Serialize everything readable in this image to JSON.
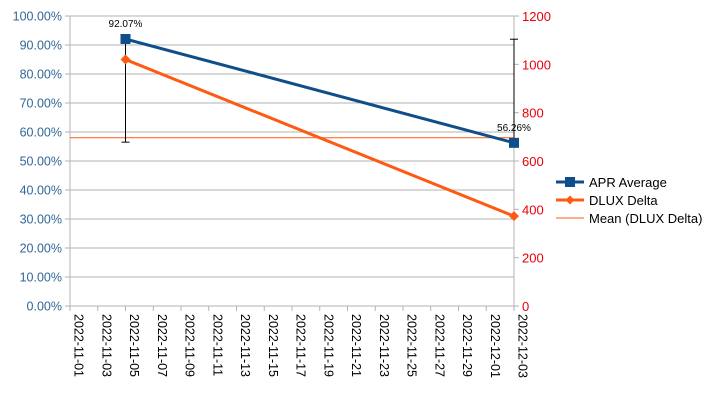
{
  "chart_data": {
    "type": "line",
    "x": [
      "2022-11-05",
      "2022-12-03"
    ],
    "x_tick_labels": [
      "2022-11-01",
      "2022-11-03",
      "2022-11-05",
      "2022-11-07",
      "2022-11-09",
      "2022-11-11",
      "2022-11-13",
      "2022-11-15",
      "2022-11-17",
      "2022-11-19",
      "2022-11-21",
      "2022-11-23",
      "2022-11-25",
      "2022-11-27",
      "2022-11-29",
      "2022-12-01",
      "2022-12-03"
    ],
    "x_range": [
      "2022-11-01",
      "2022-12-03"
    ],
    "y_left": {
      "range": [
        0,
        100
      ],
      "ticks": [
        "0.00%",
        "10.00%",
        "20.00%",
        "30.00%",
        "40.00%",
        "50.00%",
        "60.00%",
        "70.00%",
        "80.00%",
        "90.00%",
        "100.00%"
      ],
      "color": "#336699"
    },
    "y_right": {
      "range": [
        0,
        1200
      ],
      "ticks": [
        "0",
        "200",
        "400",
        "600",
        "800",
        "1000",
        "1200"
      ],
      "color": "#e8000b"
    },
    "series": [
      {
        "name": "APR Average",
        "axis": "left",
        "values": [
          92.07,
          56.26
        ],
        "data_labels": [
          "92.07%",
          "56.26%"
        ],
        "color": "#0f4e8a",
        "marker": "square",
        "error_bars": [
          [
            56.5,
            92.07
          ],
          [
            56.26,
            92.0
          ]
        ]
      },
      {
        "name": "DLUX Delta",
        "axis": "right",
        "values": [
          1020,
          372
        ],
        "color": "#ff5a14",
        "marker": "diamond"
      }
    ],
    "mean_line": {
      "name": "Mean (DLUX Delta)",
      "axis": "right",
      "value": 696,
      "color": "#ff5a14"
    },
    "grid": "horizontal",
    "legend_position": "right"
  }
}
